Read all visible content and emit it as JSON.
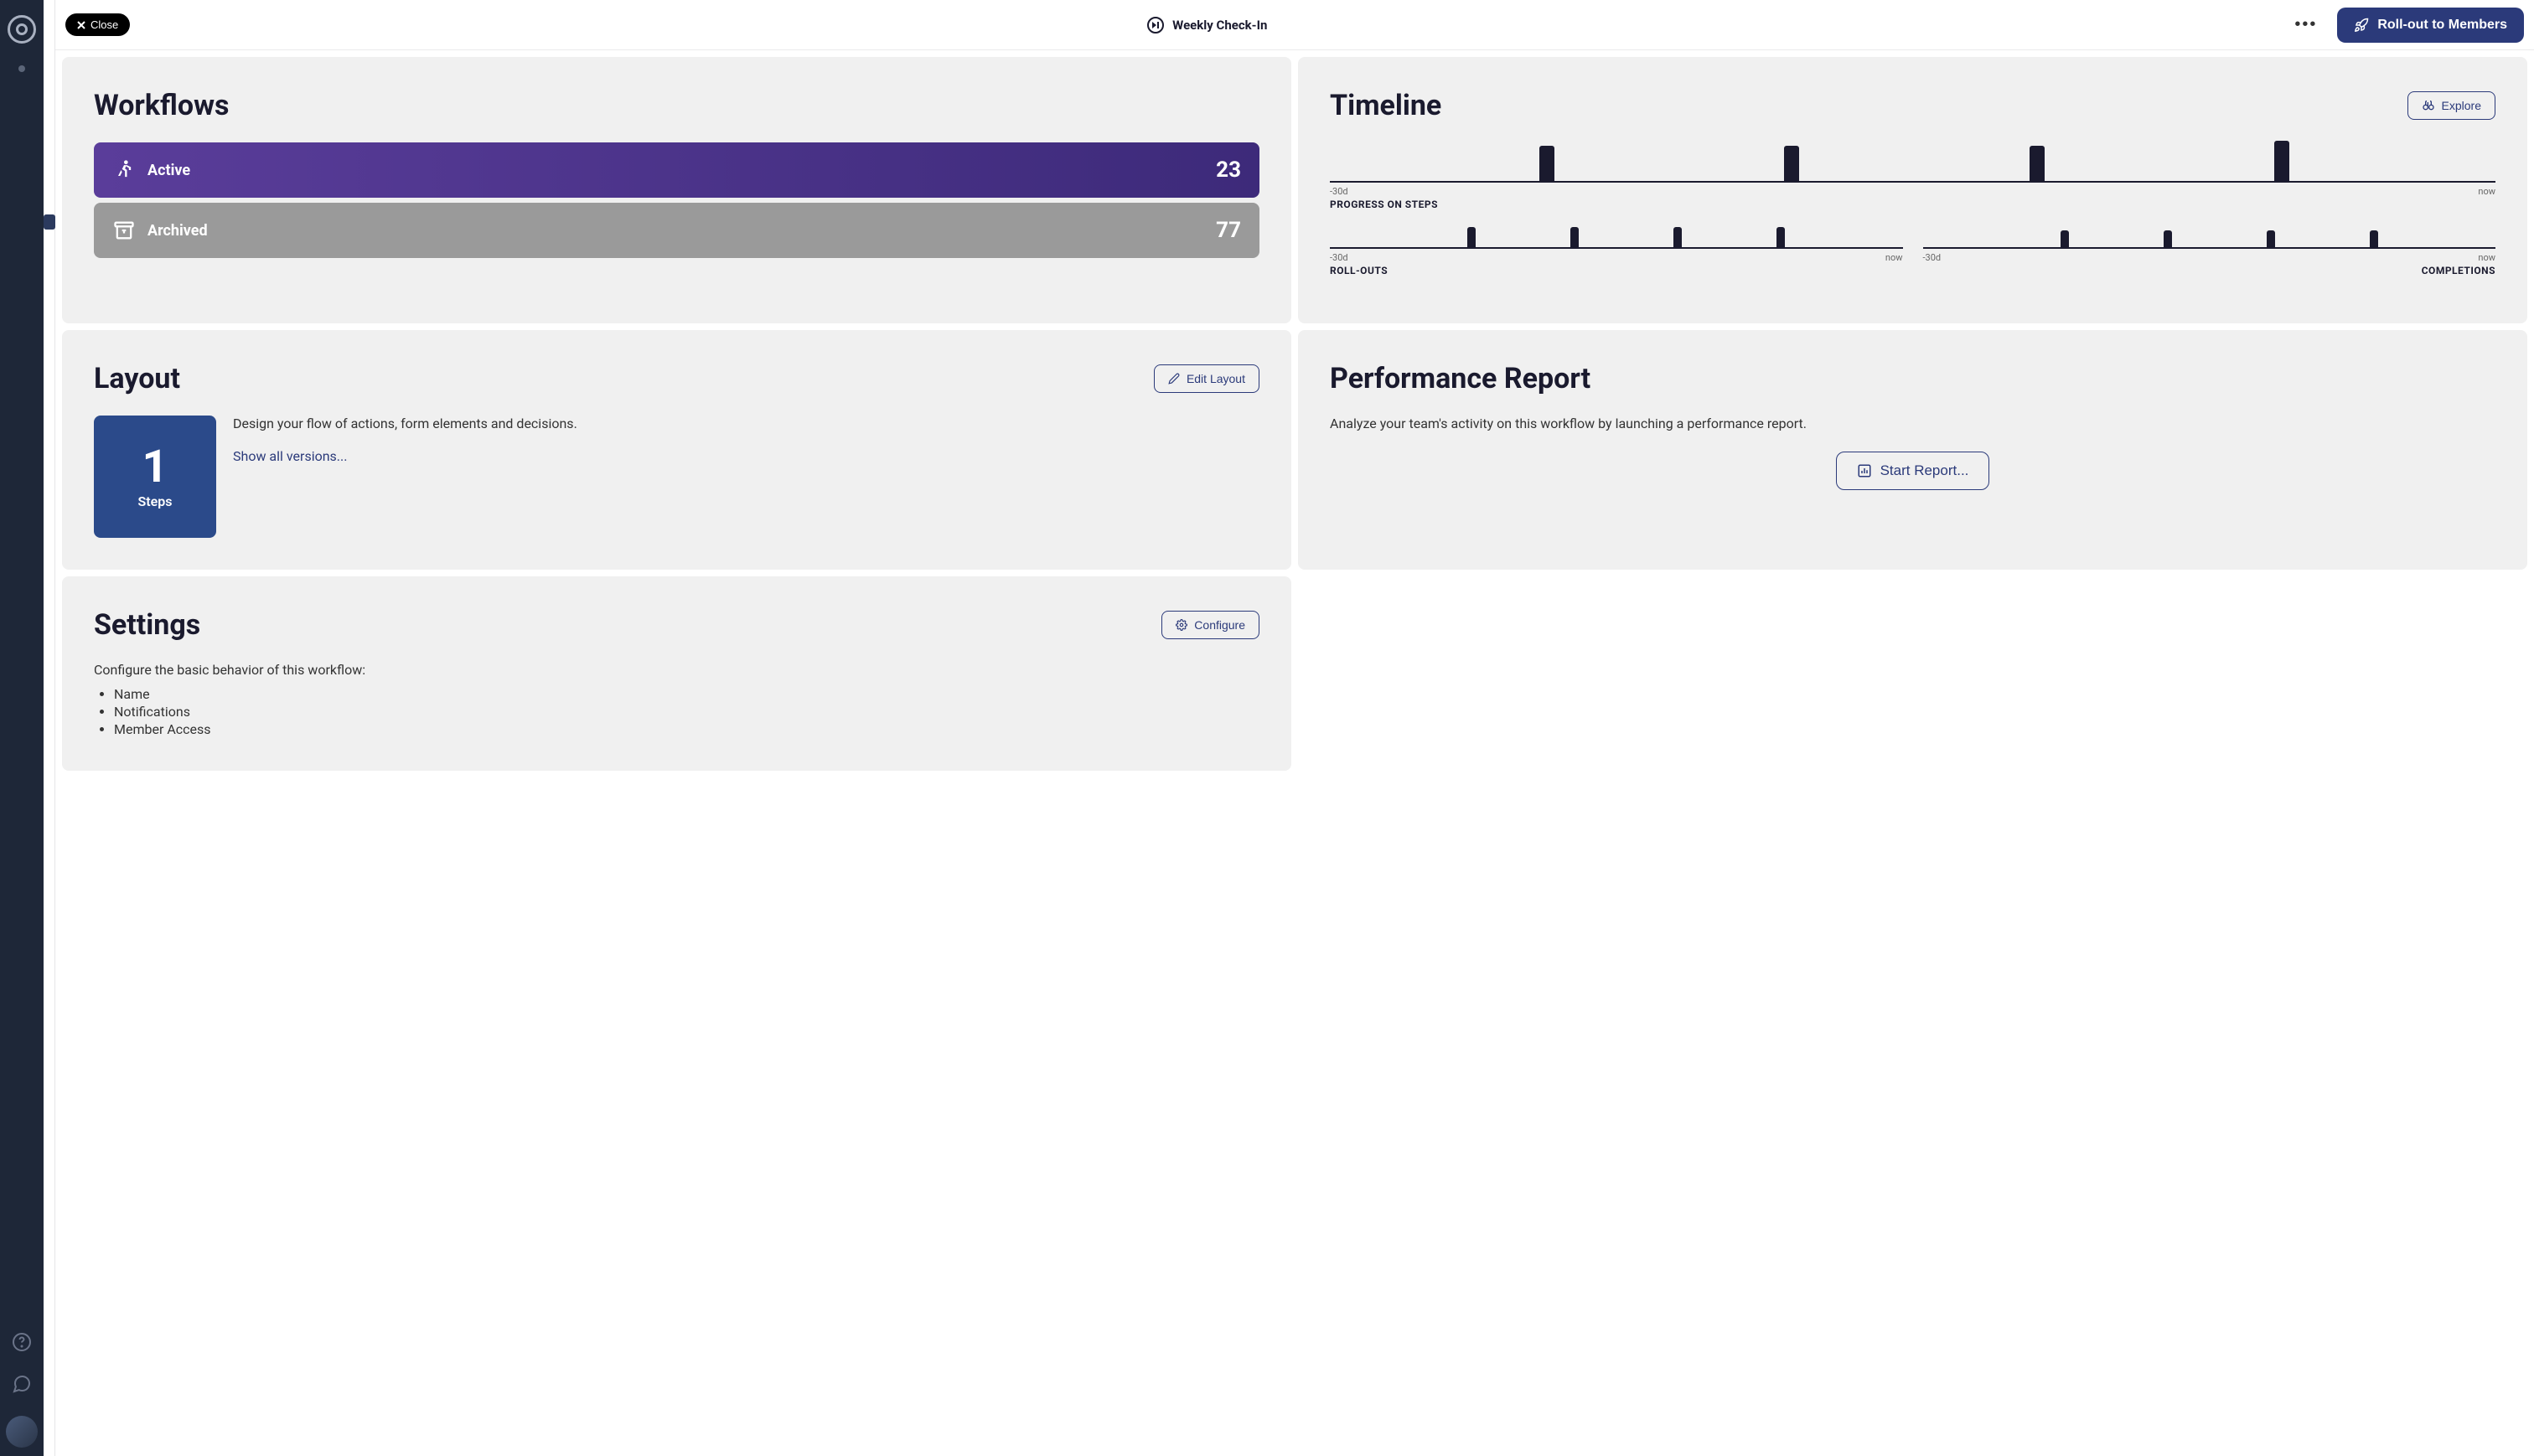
{
  "colors": {
    "rail_bg": "#1e2738",
    "card_bg": "#f0f0f0",
    "primary": "#2b3a7a",
    "active_grad_start": "#5a3d9a",
    "active_grad_end": "#3d2a7a",
    "archived_bg": "#9a9a9a",
    "steps_tile": "#2b4a8a",
    "text_dark": "#1a1a2e"
  },
  "topbar": {
    "close_label": "Close",
    "title": "Weekly Check-In",
    "rollout_label": "Roll-out to Members"
  },
  "workflows": {
    "title": "Workflows",
    "rows": [
      {
        "label": "Active",
        "count": "23"
      },
      {
        "label": "Archived",
        "count": "77"
      }
    ]
  },
  "timeline": {
    "title": "Timeline",
    "explore_label": "Explore",
    "axis_start": "-30d",
    "axis_end": "now",
    "progress": {
      "title": "PROGRESS ON STEPS",
      "bars": [
        {
          "pos_pct": 18,
          "h": 42
        },
        {
          "pos_pct": 39,
          "h": 42
        },
        {
          "pos_pct": 60,
          "h": 42
        },
        {
          "pos_pct": 81,
          "h": 48
        }
      ]
    },
    "rollouts": {
      "title": "ROLL-OUTS",
      "bars": [
        {
          "pos_pct": 24,
          "h": 24
        },
        {
          "pos_pct": 42,
          "h": 24
        },
        {
          "pos_pct": 60,
          "h": 24
        },
        {
          "pos_pct": 78,
          "h": 24
        }
      ]
    },
    "completions": {
      "title": "COMPLETIONS",
      "bars": [
        {
          "pos_pct": 24,
          "h": 20
        },
        {
          "pos_pct": 42,
          "h": 20
        },
        {
          "pos_pct": 60,
          "h": 20
        },
        {
          "pos_pct": 78,
          "h": 20
        }
      ]
    }
  },
  "layout": {
    "title": "Layout",
    "edit_label": "Edit Layout",
    "steps_count": "1",
    "steps_label": "Steps",
    "description": "Design your flow of actions, form elements and decisions.",
    "show_versions": "Show all versions..."
  },
  "performance": {
    "title": "Performance Report",
    "description": "Analyze your team's activity on this workflow by launching a performance report.",
    "start_label": "Start Report..."
  },
  "settings": {
    "title": "Settings",
    "configure_label": "Configure",
    "description": "Configure the basic behavior of this workflow:",
    "items": [
      "Name",
      "Notifications",
      "Member Access"
    ]
  }
}
